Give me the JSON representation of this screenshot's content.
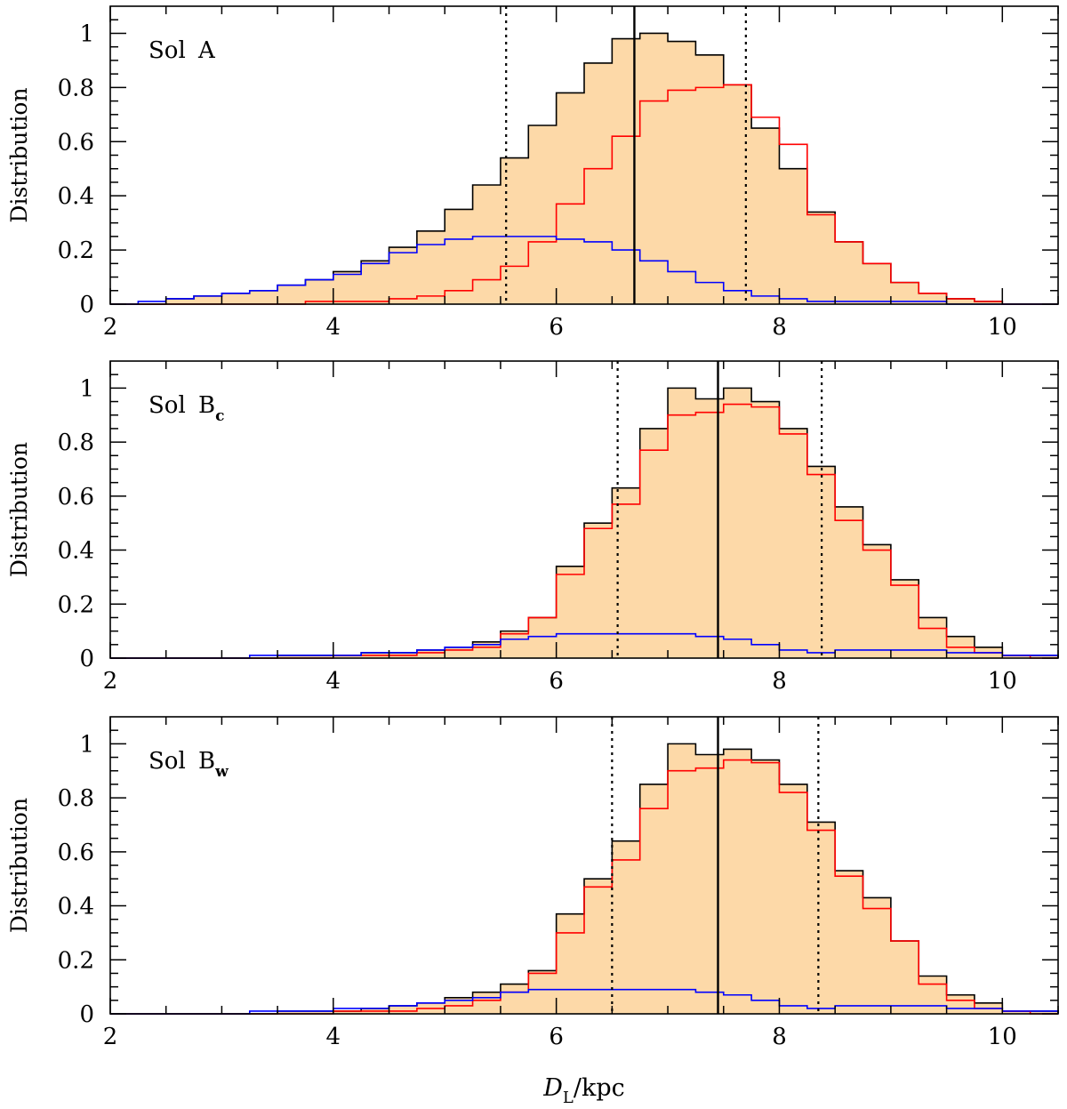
{
  "figure": {
    "xlabel": "D_L/kpc",
    "xlabel_main": "D",
    "xlabel_sub": "L",
    "xlabel_rest": "/kpc"
  },
  "colors": {
    "fill": "#fdd9a8",
    "total": "#000000",
    "red": "#ff0000",
    "blue": "#0000ff"
  },
  "chart_data": [
    {
      "type": "histogram",
      "title": "Sol A",
      "label_main": "Sol",
      "label_letter": "A",
      "label_sub": "",
      "ylabel": "Distribution",
      "xlim": [
        2,
        10.5
      ],
      "ylim": [
        0,
        1.1
      ],
      "xticks": [
        2,
        4,
        6,
        8,
        10
      ],
      "yticks": [
        0,
        0.2,
        0.4,
        0.6,
        0.8,
        1
      ],
      "ytick_labels": [
        "0",
        "0.2",
        "0.4",
        "0.6",
        "0.8",
        "1"
      ],
      "bin_edges": [
        2.0,
        2.25,
        2.5,
        2.75,
        3.0,
        3.25,
        3.5,
        3.75,
        4.0,
        4.25,
        4.5,
        4.75,
        5.0,
        5.25,
        5.5,
        5.75,
        6.0,
        6.25,
        6.5,
        6.75,
        7.0,
        7.25,
        7.5,
        7.75,
        8.0,
        8.25,
        8.5,
        8.75,
        9.0,
        9.25,
        9.5,
        9.75,
        10.0,
        10.25,
        10.5
      ],
      "series": [
        {
          "name": "total",
          "values": [
            0.0,
            0.0,
            0.02,
            0.03,
            0.04,
            0.05,
            0.07,
            0.09,
            0.12,
            0.16,
            0.21,
            0.27,
            0.35,
            0.44,
            0.54,
            0.66,
            0.78,
            0.89,
            0.98,
            1.0,
            0.97,
            0.92,
            0.81,
            0.65,
            0.5,
            0.34,
            0.23,
            0.15,
            0.08,
            0.04,
            0.02,
            0.01,
            0.0,
            0.0
          ]
        },
        {
          "name": "red",
          "values": [
            0.0,
            0.0,
            0.0,
            0.0,
            0.0,
            0.0,
            0.0,
            0.01,
            0.01,
            0.01,
            0.02,
            0.03,
            0.05,
            0.09,
            0.14,
            0.23,
            0.37,
            0.5,
            0.62,
            0.75,
            0.79,
            0.8,
            0.81,
            0.69,
            0.59,
            0.33,
            0.23,
            0.15,
            0.08,
            0.04,
            0.02,
            0.01,
            0.0,
            0.0
          ]
        },
        {
          "name": "blue",
          "values": [
            0.0,
            0.01,
            0.02,
            0.03,
            0.04,
            0.05,
            0.07,
            0.09,
            0.11,
            0.15,
            0.19,
            0.22,
            0.24,
            0.25,
            0.25,
            0.25,
            0.24,
            0.23,
            0.2,
            0.16,
            0.12,
            0.08,
            0.05,
            0.03,
            0.02,
            0.01,
            0.01,
            0.01,
            0.01,
            0.01,
            0.0,
            0.0,
            0.0,
            0.0
          ]
        }
      ],
      "median": 6.7,
      "interval": [
        5.55,
        7.7
      ]
    },
    {
      "type": "histogram",
      "title": "Sol B_c",
      "label_main": "Sol",
      "label_letter": "B",
      "label_sub": "c",
      "ylabel": "Distribution",
      "xlim": [
        2,
        10.5
      ],
      "ylim": [
        0,
        1.1
      ],
      "xticks": [
        2,
        4,
        6,
        8,
        10
      ],
      "yticks": [
        0,
        0.2,
        0.4,
        0.6,
        0.8,
        1
      ],
      "ytick_labels": [
        "0",
        "0.2",
        "0.4",
        "0.6",
        "0.8",
        "1"
      ],
      "bin_edges": [
        2.0,
        2.25,
        2.5,
        2.75,
        3.0,
        3.25,
        3.5,
        3.75,
        4.0,
        4.25,
        4.5,
        4.75,
        5.0,
        5.25,
        5.5,
        5.75,
        6.0,
        6.25,
        6.5,
        6.75,
        7.0,
        7.25,
        7.5,
        7.75,
        8.0,
        8.25,
        8.5,
        8.75,
        9.0,
        9.25,
        9.5,
        9.75,
        10.0,
        10.25,
        10.5
      ],
      "series": [
        {
          "name": "total",
          "values": [
            0.0,
            0.0,
            0.0,
            0.0,
            0.0,
            0.0,
            0.01,
            0.01,
            0.01,
            0.02,
            0.02,
            0.03,
            0.04,
            0.06,
            0.1,
            0.15,
            0.34,
            0.5,
            0.63,
            0.85,
            1.0,
            0.96,
            1.0,
            0.95,
            0.85,
            0.71,
            0.56,
            0.42,
            0.29,
            0.15,
            0.08,
            0.04,
            0.01,
            0.01
          ]
        },
        {
          "name": "red",
          "values": [
            0.0,
            0.0,
            0.0,
            0.0,
            0.0,
            0.0,
            0.0,
            0.0,
            0.01,
            0.01,
            0.01,
            0.02,
            0.03,
            0.04,
            0.09,
            0.15,
            0.31,
            0.48,
            0.57,
            0.77,
            0.9,
            0.91,
            0.94,
            0.93,
            0.83,
            0.68,
            0.51,
            0.4,
            0.27,
            0.11,
            0.04,
            0.02,
            0.01,
            0.0
          ]
        },
        {
          "name": "blue",
          "values": [
            0.0,
            0.0,
            0.0,
            0.0,
            0.0,
            0.01,
            0.01,
            0.01,
            0.01,
            0.02,
            0.02,
            0.03,
            0.04,
            0.05,
            0.07,
            0.08,
            0.09,
            0.09,
            0.09,
            0.09,
            0.09,
            0.08,
            0.07,
            0.05,
            0.03,
            0.02,
            0.03,
            0.03,
            0.03,
            0.03,
            0.02,
            0.02,
            0.01,
            0.01
          ]
        }
      ],
      "median": 7.45,
      "interval": [
        6.55,
        8.38
      ]
    },
    {
      "type": "histogram",
      "title": "Sol B_w",
      "label_main": "Sol",
      "label_letter": "B",
      "label_sub": "w",
      "ylabel": "Distribution",
      "xlim": [
        2,
        10.5
      ],
      "ylim": [
        0,
        1.1
      ],
      "xticks": [
        2,
        4,
        6,
        8,
        10
      ],
      "yticks": [
        0,
        0.2,
        0.4,
        0.6,
        0.8,
        1
      ],
      "ytick_labels": [
        "0",
        "0.2",
        "0.4",
        "0.6",
        "0.8",
        "1"
      ],
      "bin_edges": [
        2.0,
        2.25,
        2.5,
        2.75,
        3.0,
        3.25,
        3.5,
        3.75,
        4.0,
        4.25,
        4.5,
        4.75,
        5.0,
        5.25,
        5.5,
        5.75,
        6.0,
        6.25,
        6.5,
        6.75,
        7.0,
        7.25,
        7.5,
        7.75,
        8.0,
        8.25,
        8.5,
        8.75,
        9.0,
        9.25,
        9.5,
        9.75,
        10.0,
        10.25,
        10.5
      ],
      "series": [
        {
          "name": "total",
          "values": [
            0.0,
            0.0,
            0.0,
            0.0,
            0.0,
            0.0,
            0.01,
            0.01,
            0.01,
            0.02,
            0.03,
            0.04,
            0.06,
            0.08,
            0.11,
            0.16,
            0.37,
            0.5,
            0.64,
            0.85,
            1.0,
            0.96,
            0.98,
            0.94,
            0.85,
            0.71,
            0.53,
            0.43,
            0.27,
            0.14,
            0.07,
            0.04,
            0.01,
            0.01
          ]
        },
        {
          "name": "red",
          "values": [
            0.0,
            0.0,
            0.0,
            0.0,
            0.0,
            0.0,
            0.0,
            0.0,
            0.01,
            0.01,
            0.01,
            0.02,
            0.03,
            0.05,
            0.08,
            0.15,
            0.3,
            0.47,
            0.57,
            0.76,
            0.9,
            0.91,
            0.94,
            0.93,
            0.82,
            0.68,
            0.51,
            0.39,
            0.27,
            0.11,
            0.05,
            0.02,
            0.01,
            0.0
          ]
        },
        {
          "name": "blue",
          "values": [
            0.0,
            0.0,
            0.0,
            0.0,
            0.0,
            0.01,
            0.01,
            0.01,
            0.02,
            0.02,
            0.03,
            0.04,
            0.05,
            0.06,
            0.08,
            0.09,
            0.09,
            0.09,
            0.09,
            0.09,
            0.09,
            0.08,
            0.07,
            0.05,
            0.03,
            0.02,
            0.03,
            0.03,
            0.03,
            0.03,
            0.02,
            0.02,
            0.01,
            0.01
          ]
        }
      ],
      "median": 7.45,
      "interval": [
        6.5,
        8.35
      ]
    }
  ]
}
